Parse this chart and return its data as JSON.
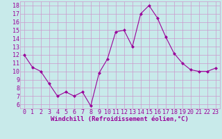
{
  "x": [
    0,
    1,
    2,
    3,
    4,
    5,
    6,
    7,
    8,
    9,
    10,
    11,
    12,
    13,
    14,
    15,
    16,
    17,
    18,
    19,
    20,
    21,
    22,
    23
  ],
  "y": [
    12,
    10.5,
    10,
    8.5,
    7,
    7.5,
    7,
    7.5,
    5.8,
    9.8,
    11.5,
    14.8,
    15,
    13,
    17,
    18,
    16.5,
    14.2,
    12.2,
    11,
    10.2,
    10,
    10,
    10.4
  ],
  "line_color": "#990099",
  "marker_color": "#990099",
  "bg_color": "#c8eaea",
  "grid_color": "#cc99cc",
  "xlabel": "Windchill (Refroidissement éolien,°C)",
  "xlabel_color": "#990099",
  "tick_color": "#990099",
  "ylim": [
    5.5,
    18.5
  ],
  "xlim": [
    -0.5,
    23.5
  ],
  "yticks": [
    6,
    7,
    8,
    9,
    10,
    11,
    12,
    13,
    14,
    15,
    16,
    17,
    18
  ],
  "xticks": [
    0,
    1,
    2,
    3,
    4,
    5,
    6,
    7,
    8,
    9,
    10,
    11,
    12,
    13,
    14,
    15,
    16,
    17,
    18,
    19,
    20,
    21,
    22,
    23
  ],
  "label_fontsize": 6.5,
  "tick_fontsize": 6
}
